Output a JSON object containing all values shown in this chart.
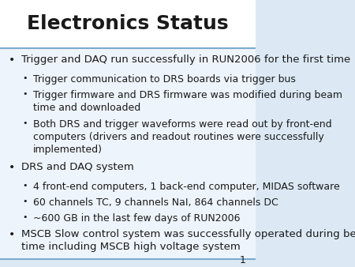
{
  "title": "Electronics Status",
  "title_fontsize": 18,
  "background_color": "#dce9f5",
  "slide_background": "#eef4fb",
  "border_color": "#7aaace",
  "text_color": "#1a1a1a",
  "page_number": "1",
  "items": [
    {
      "level": 1,
      "bullet": "•",
      "text": "Trigger and DAQ run successfully in RUN2006 for the first time",
      "fontsize": 9.5
    },
    {
      "level": 2,
      "bullet": "•",
      "text": "Trigger communication to DRS boards via trigger bus",
      "fontsize": 9.0
    },
    {
      "level": 2,
      "bullet": "•",
      "text": "Trigger firmware and DRS firmware was modified during beam\ntime and downloaded",
      "fontsize": 9.0
    },
    {
      "level": 2,
      "bullet": "•",
      "text": "Both DRS and trigger waveforms were read out by front-end\ncomputers (drivers and readout routines were successfully\nimplemented)",
      "fontsize": 9.0
    },
    {
      "level": 1,
      "bullet": "•",
      "text": "DRS and DAQ system",
      "fontsize": 9.5
    },
    {
      "level": 2,
      "bullet": "•",
      "text": "4 front-end computers, 1 back-end computer, MIDAS software",
      "fontsize": 9.0
    },
    {
      "level": 2,
      "bullet": "•",
      "text": "60 channels TC, 9 channels NaI, 864 channels DC",
      "fontsize": 9.0
    },
    {
      "level": 2,
      "bullet": "•",
      "text": "~600 GB in the last few days of RUN2006",
      "fontsize": 9.0
    },
    {
      "level": 1,
      "bullet": "•",
      "text": "MSCB Slow control system was successfully operated during beam\ntime including MSCB high voltage system",
      "fontsize": 9.5
    }
  ]
}
